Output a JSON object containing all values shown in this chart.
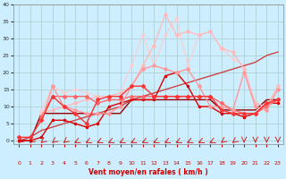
{
  "xlabel": "Vent moyen/en rafales ( km/h )",
  "background_color": "#cceeff",
  "grid_color": "#aacccc",
  "xlim": [
    -0.5,
    23.5
  ],
  "ylim": [
    -1,
    40
  ],
  "yticks": [
    0,
    5,
    10,
    15,
    20,
    25,
    30,
    35,
    40
  ],
  "xticks": [
    0,
    1,
    2,
    3,
    4,
    5,
    6,
    7,
    8,
    9,
    10,
    11,
    12,
    13,
    14,
    15,
    16,
    17,
    18,
    19,
    20,
    21,
    22,
    23
  ],
  "series": [
    {
      "x": [
        0,
        1,
        2,
        3,
        4,
        5,
        6,
        7,
        8,
        9,
        10,
        11,
        12,
        13,
        14,
        15,
        16,
        17,
        18,
        19,
        20,
        21,
        22,
        23
      ],
      "y": [
        0,
        0,
        1,
        6,
        6,
        5,
        4,
        5,
        10,
        11,
        12,
        12,
        12,
        19,
        20,
        16,
        10,
        10,
        8,
        8,
        7,
        8,
        11,
        11
      ],
      "color": "#dd0000",
      "lw": 1.0,
      "marker": "o",
      "ms": 1.5,
      "zorder": 4
    },
    {
      "x": [
        0,
        1,
        2,
        3,
        4,
        5,
        6,
        7,
        8,
        9,
        10,
        11,
        12,
        13,
        14,
        15,
        16,
        17,
        18,
        19,
        20,
        21,
        22,
        23
      ],
      "y": [
        1,
        1,
        6,
        13,
        10,
        8,
        5,
        12,
        13,
        13,
        16,
        16,
        13,
        13,
        13,
        13,
        13,
        13,
        9,
        8,
        8,
        8,
        11,
        12
      ],
      "color": "#ff3333",
      "lw": 1.0,
      "marker": "D",
      "ms": 2,
      "zorder": 5
    },
    {
      "x": [
        0,
        1,
        2,
        3,
        4,
        5,
        6,
        7,
        8,
        9,
        10,
        11,
        12,
        13,
        14,
        15,
        16,
        17,
        18,
        19,
        20,
        21,
        22,
        23
      ],
      "y": [
        0,
        0,
        8,
        8,
        8,
        8,
        8,
        8,
        8,
        8,
        12,
        12,
        12,
        12,
        12,
        12,
        12,
        12,
        9,
        9,
        9,
        9,
        12,
        12
      ],
      "color": "#990000",
      "lw": 1.0,
      "marker": null,
      "ms": 0,
      "zorder": 3
    },
    {
      "x": [
        0,
        1,
        2,
        3,
        4,
        5,
        6,
        7,
        8,
        9,
        10,
        11,
        12,
        13,
        14,
        15,
        16,
        17,
        18,
        19,
        20,
        21,
        22,
        23
      ],
      "y": [
        0,
        1,
        3,
        4,
        5,
        6,
        7,
        8,
        9,
        10,
        12,
        13,
        14,
        15,
        16,
        17,
        18,
        19,
        20,
        21,
        22,
        23,
        25,
        26
      ],
      "color": "#cc4444",
      "lw": 1.0,
      "marker": null,
      "ms": 0,
      "zorder": 3
    },
    {
      "x": [
        2,
        3,
        4,
        5,
        6,
        7,
        8,
        9,
        10,
        11,
        12,
        13,
        14,
        15,
        16,
        17,
        18,
        19,
        20,
        21,
        22,
        23
      ],
      "y": [
        7,
        13,
        13,
        13,
        13,
        11,
        12,
        12,
        13,
        13,
        13,
        13,
        13,
        13,
        13,
        13,
        11,
        9,
        8,
        8,
        10,
        12
      ],
      "color": "#ff6666",
      "lw": 1.0,
      "marker": "D",
      "ms": 2,
      "zorder": 4
    },
    {
      "x": [
        2,
        3,
        4,
        5,
        6,
        7,
        8,
        9,
        10,
        11,
        12,
        13,
        14,
        15,
        16,
        17,
        18,
        19,
        20,
        21,
        22,
        23
      ],
      "y": [
        6,
        16,
        10,
        9,
        8,
        8,
        8,
        10,
        16,
        21,
        22,
        21,
        20,
        21,
        16,
        10,
        10,
        9,
        20,
        10,
        9,
        15
      ],
      "color": "#ff9999",
      "lw": 1.0,
      "marker": "D",
      "ms": 2,
      "zorder": 4
    },
    {
      "x": [
        2,
        3,
        4,
        5,
        6,
        7,
        8,
        9,
        10,
        11,
        12,
        13,
        14,
        15,
        16,
        17,
        18,
        19,
        20,
        21,
        22,
        23
      ],
      "y": [
        8,
        9,
        10,
        11,
        12,
        13,
        13,
        14,
        16,
        22,
        28,
        37,
        31,
        32,
        31,
        32,
        27,
        26,
        21,
        11,
        10,
        16
      ],
      "color": "#ffbbbb",
      "lw": 1.0,
      "marker": "D",
      "ms": 2,
      "zorder": 3
    },
    {
      "x": [
        2,
        3,
        4,
        5,
        6,
        7,
        8,
        9,
        10,
        11,
        12,
        13,
        14,
        15,
        16,
        17,
        18,
        19,
        20,
        21,
        22,
        23
      ],
      "y": [
        9,
        16,
        14,
        15,
        14,
        13,
        13,
        14,
        22,
        31,
        22,
        31,
        36,
        22,
        31,
        32,
        27,
        24,
        22,
        10,
        10,
        16
      ],
      "color": "#ffcccc",
      "lw": 0.8,
      "marker": "D",
      "ms": 1.5,
      "zorder": 2
    }
  ],
  "arrow_angles": [
    225,
    225,
    225,
    225,
    225,
    210,
    210,
    210,
    210,
    210,
    210,
    210,
    210,
    210,
    210,
    210,
    210,
    210,
    225,
    225,
    270,
    270,
    270,
    270
  ]
}
